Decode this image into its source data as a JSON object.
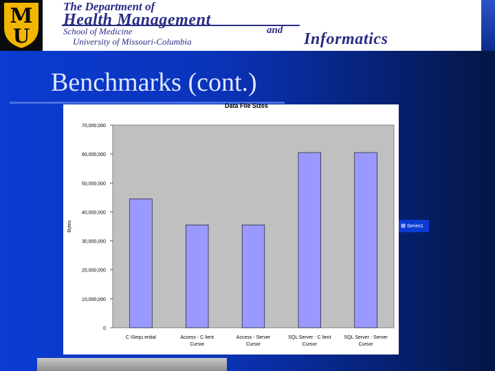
{
  "header": {
    "line1": "The Department of",
    "line2": "Health Management",
    "line3": "School of Medicine",
    "and": "and",
    "line4": "University of Missouri-Columbia",
    "line5": "Informatics",
    "logo_text": "MU"
  },
  "slide": {
    "title": "Benchmarks (cont.)"
  },
  "colors": {
    "bar": "#9999ff",
    "plot_bg": "#c0c0c0",
    "background": "#0b3bd2"
  },
  "chart_data": {
    "type": "bar",
    "title": "Data File Sizes",
    "xlabel": "",
    "ylabel": "Bytes",
    "ylim": [
      0,
      70000000
    ],
    "yticks": [
      0,
      10000000,
      20000000,
      30000000,
      40000000,
      50000000,
      60000000,
      70000000
    ],
    "ytick_labels": [
      "0",
      "10,000,000",
      "20,000,000",
      "30,000,000",
      "40,000,000",
      "50,000,000",
      "60,000,000",
      "70,000,000"
    ],
    "categories": [
      [
        "C ISequ ential"
      ],
      [
        "Access - C lient",
        "Cursor"
      ],
      [
        "Access - Server",
        "Cursor"
      ],
      [
        "SQL Server - C lient",
        "Cursor"
      ],
      [
        "SQL Server - Server",
        "Cursor"
      ]
    ],
    "series": [
      {
        "name": "Series1",
        "values": [
          44500000,
          35500000,
          35500000,
          60500000,
          60500000
        ]
      }
    ],
    "legend_position": "right",
    "grid": false
  }
}
